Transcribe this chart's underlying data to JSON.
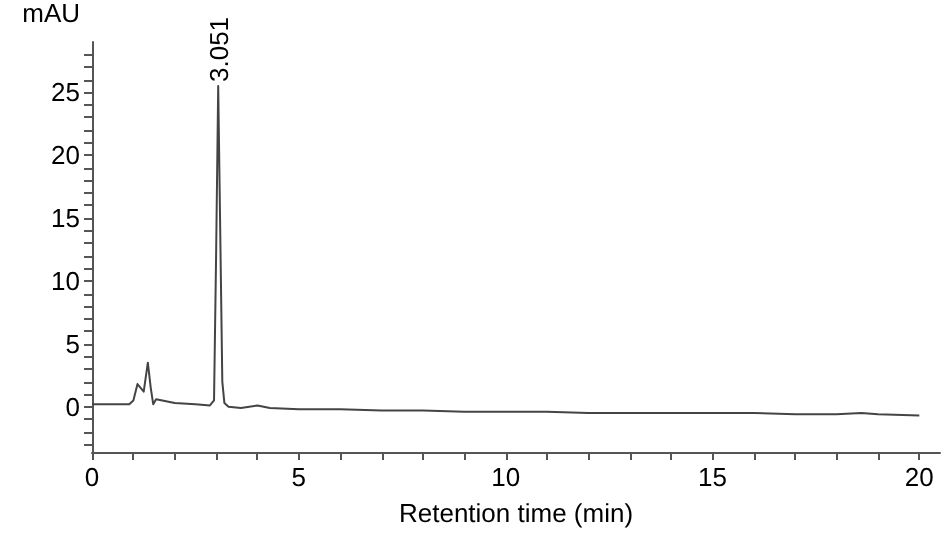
{
  "chart_data": {
    "type": "line",
    "xlabel": "Retention time (min)",
    "ylabel": "mAU",
    "xlim": [
      0,
      20.5
    ],
    "ylim": [
      -3.6,
      29
    ],
    "xticks": [
      0,
      {
        "value": 1,
        "label": null
      },
      {
        "value": 2,
        "label": null
      },
      {
        "value": 3,
        "label": null
      },
      {
        "value": 4,
        "label": null
      },
      5,
      {
        "value": 6,
        "label": null
      },
      {
        "value": 7,
        "label": null
      },
      {
        "value": 8,
        "label": null
      },
      {
        "value": 9,
        "label": null
      },
      10,
      {
        "value": 11,
        "label": null
      },
      {
        "value": 12,
        "label": null
      },
      {
        "value": 13,
        "label": null
      },
      {
        "value": 14,
        "label": null
      },
      15,
      {
        "value": 16,
        "label": null
      },
      {
        "value": 17,
        "label": null
      },
      {
        "value": 18,
        "label": null
      },
      {
        "value": 19,
        "label": null
      },
      20
    ],
    "yticks": [
      {
        "value": -3,
        "label": null
      },
      {
        "value": -2,
        "label": null
      },
      {
        "value": -1,
        "label": null
      },
      0,
      {
        "value": 1,
        "label": null
      },
      {
        "value": 2,
        "label": null
      },
      {
        "value": 3,
        "label": null
      },
      {
        "value": 4,
        "label": null
      },
      5,
      {
        "value": 6,
        "label": null
      },
      {
        "value": 7,
        "label": null
      },
      {
        "value": 8,
        "label": null
      },
      {
        "value": 9,
        "label": null
      },
      10,
      {
        "value": 11,
        "label": null
      },
      {
        "value": 12,
        "label": null
      },
      {
        "value": 13,
        "label": null
      },
      {
        "value": 14,
        "label": null
      },
      15,
      {
        "value": 16,
        "label": null
      },
      {
        "value": 17,
        "label": null
      },
      {
        "value": 18,
        "label": null
      },
      {
        "value": 19,
        "label": null
      },
      20,
      {
        "value": 21,
        "label": null
      },
      {
        "value": 22,
        "label": null
      },
      {
        "value": 23,
        "label": null
      },
      {
        "value": 24,
        "label": null
      },
      25,
      {
        "value": 26,
        "label": null
      },
      {
        "value": 27,
        "label": null
      },
      {
        "value": 28,
        "label": null
      }
    ],
    "grid": false,
    "marker": "none",
    "line_style": "solid",
    "series": [
      {
        "color": "#444444",
        "x": [
          0,
          0.5,
          0.9,
          1.0,
          1.1,
          1.2,
          1.25,
          1.35,
          1.42,
          1.48,
          1.55,
          1.7,
          2.0,
          2.5,
          2.85,
          2.95,
          3.0,
          3.051,
          3.1,
          3.15,
          3.2,
          3.3,
          3.6,
          4.0,
          4.3,
          5,
          6,
          7,
          8,
          9,
          10,
          11,
          12,
          13,
          14,
          15,
          16,
          17,
          18,
          18.6,
          19,
          20
        ],
        "values": [
          0.2,
          0.2,
          0.2,
          0.5,
          1.8,
          1.4,
          1.2,
          3.5,
          1.5,
          0.2,
          0.6,
          0.5,
          0.3,
          0.2,
          0.1,
          0.5,
          12,
          25.5,
          14,
          2,
          0.3,
          0,
          -0.1,
          0.1,
          -0.1,
          -0.2,
          -0.2,
          -0.3,
          -0.3,
          -0.4,
          -0.4,
          -0.4,
          -0.5,
          -0.5,
          -0.5,
          -0.5,
          -0.5,
          -0.6,
          -0.6,
          -0.5,
          -0.6,
          -0.7
        ]
      }
    ],
    "annotations": [
      {
        "text": "3.051",
        "x": 3.051,
        "y": 25.5
      }
    ]
  }
}
